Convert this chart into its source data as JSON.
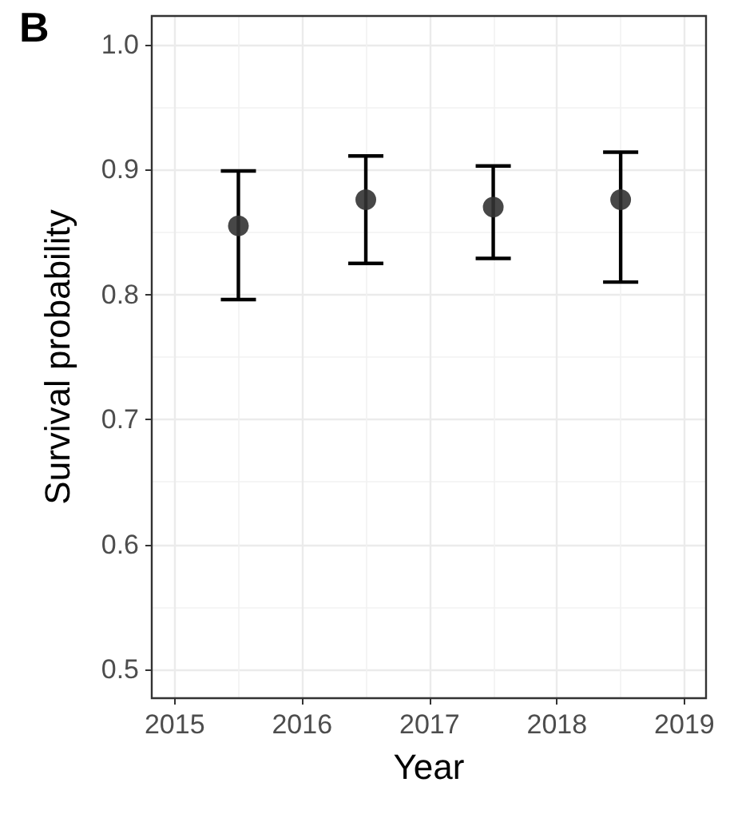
{
  "chart_data": {
    "type": "scatter",
    "xlabel": "Year",
    "ylabel": "Survival probability",
    "annotations": [
      "B"
    ],
    "x": [
      2015.5,
      2016.5,
      2017.5,
      2018.5
    ],
    "series": [
      {
        "color": "#333333",
        "values": [
          0.855,
          0.876,
          0.87,
          0.876
        ],
        "errors": [
          [
            0.796,
            0.899
          ],
          [
            0.825,
            0.911
          ],
          [
            0.829,
            0.903
          ],
          [
            0.81,
            0.914
          ]
        ]
      }
    ],
    "xlim": [
      2014.82,
      2019.17
    ],
    "xticks": [
      2015,
      2016,
      2017,
      2018,
      2019
    ],
    "ylim": [
      0.477,
      1.023
    ],
    "yticks": [
      0.5,
      0.6,
      0.7,
      0.8,
      0.9,
      {
        "value": 1,
        "label": "1.0"
      }
    ],
    "grid": true,
    "marker": "circle"
  }
}
